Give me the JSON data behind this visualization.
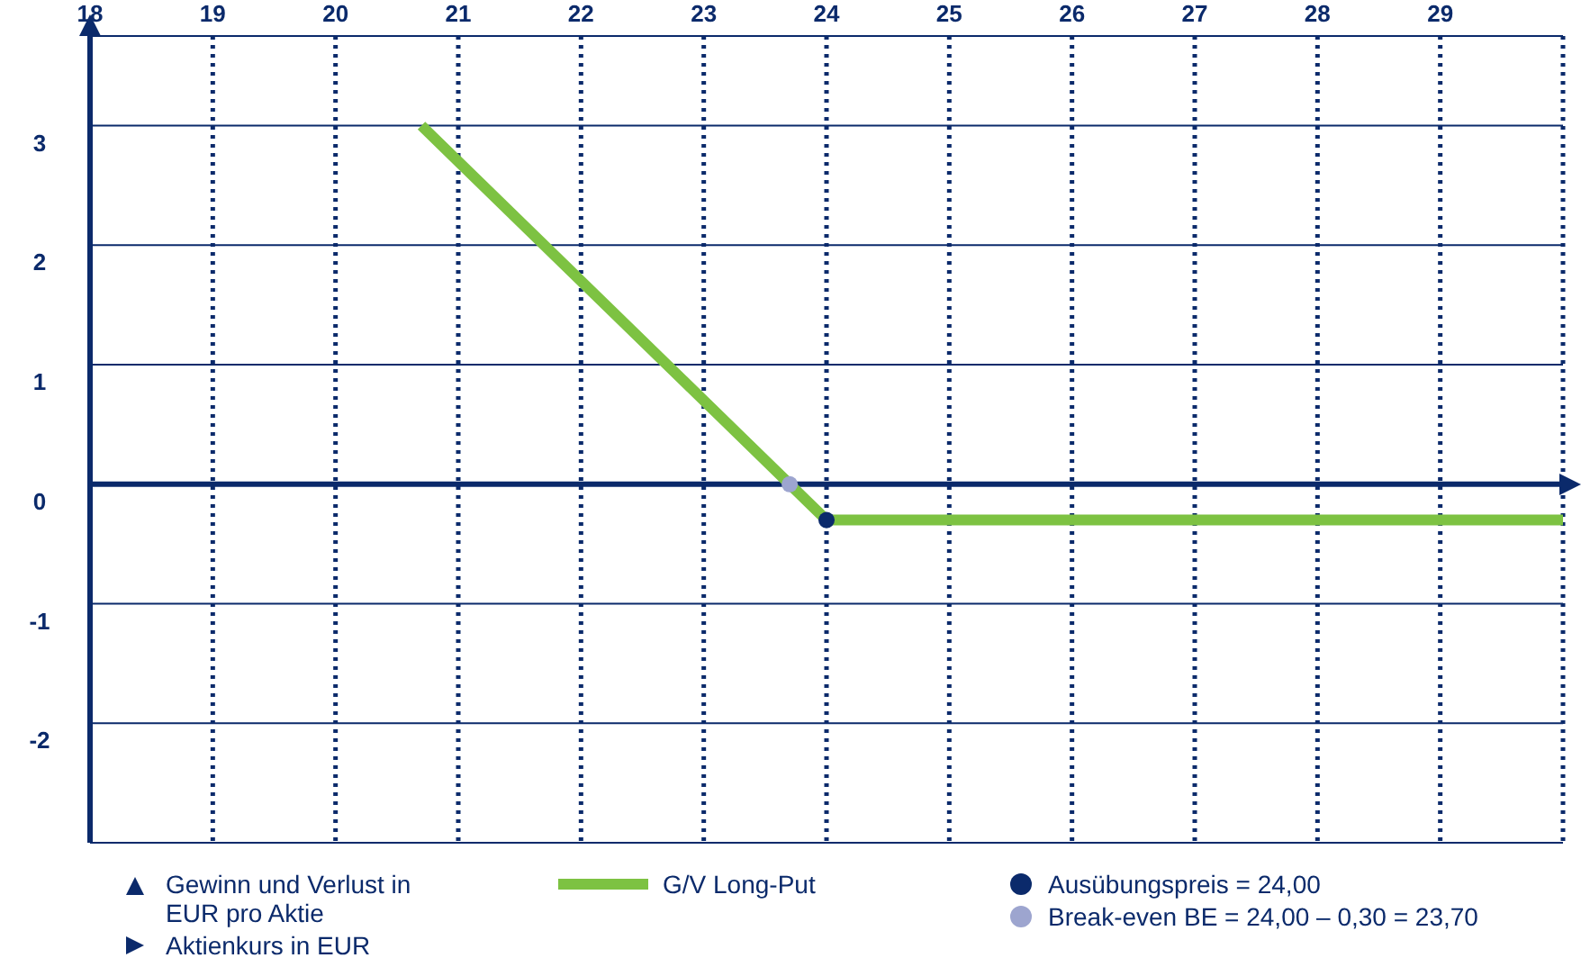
{
  "chart_data": {
    "type": "line",
    "xlabel": "Aktienkurs in EUR",
    "annotations": [
      "Gewinn und Verlust in EUR pro Aktie"
    ],
    "xlim": [
      18,
      30
    ],
    "xticks": [
      18,
      19,
      20,
      21,
      22,
      23,
      24,
      25,
      26,
      27,
      28,
      29
    ],
    "ylim": [
      -3,
      3.75
    ],
    "yticks": [
      -2,
      -1,
      0,
      1,
      2,
      3
    ],
    "grid": true,
    "legend": "bottom",
    "ref_lines": [
      {
        "axis": "y",
        "value": 0,
        "color": "#0b2a6b"
      }
    ],
    "series": [
      {
        "name": "G/V Long-Put",
        "color": "#7dc242",
        "x": [
          20.7,
          24,
          30
        ],
        "values": [
          3,
          -0.3,
          -0.3
        ],
        "marker": "none"
      },
      {
        "name": "Ausübungspreis = 24,00",
        "type": "scatter",
        "color": "#0b2a6b",
        "x": [
          24
        ],
        "values": [
          -0.3
        ],
        "marker": "circle"
      },
      {
        "name": "Break-even BE = 24,00 – 0,30 = 23,70",
        "type": "scatter",
        "color": "#9da5cf",
        "x": [
          23.7
        ],
        "values": [
          0
        ],
        "marker": "circle"
      }
    ]
  }
}
